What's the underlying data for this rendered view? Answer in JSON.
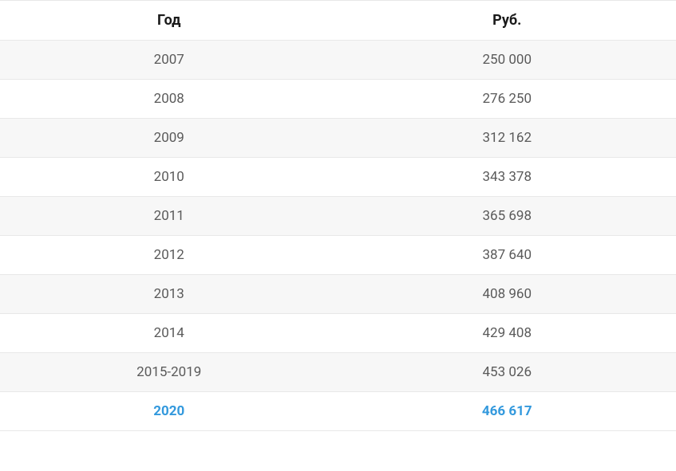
{
  "table": {
    "columns": [
      "Год",
      "Руб."
    ],
    "rows": [
      {
        "year": "2007",
        "rub": "250 000",
        "highlight": false
      },
      {
        "year": "2008",
        "rub": "276 250",
        "highlight": false
      },
      {
        "year": "2009",
        "rub": "312 162",
        "highlight": false
      },
      {
        "year": "2010",
        "rub": "343 378",
        "highlight": false
      },
      {
        "year": "2011",
        "rub": "365 698",
        "highlight": false
      },
      {
        "year": "2012",
        "rub": "387 640",
        "highlight": false
      },
      {
        "year": "2013",
        "rub": "408 960",
        "highlight": false
      },
      {
        "year": "2014",
        "rub": "429 408",
        "highlight": false
      },
      {
        "year": "2015-2019",
        "rub": "453 026",
        "highlight": false
      },
      {
        "year": "2020",
        "rub": "466 617",
        "highlight": true
      }
    ],
    "header_color": "#1a1a1a",
    "header_fontsize": 18,
    "header_fontweight": 700,
    "cell_color": "#5a5a5a",
    "cell_fontsize": 17,
    "highlight_color": "#3399dd",
    "highlight_fontweight": 700,
    "row_bg_odd": "#f7f7f7",
    "row_bg_even": "#ffffff",
    "border_color": "#e8e8e8"
  }
}
